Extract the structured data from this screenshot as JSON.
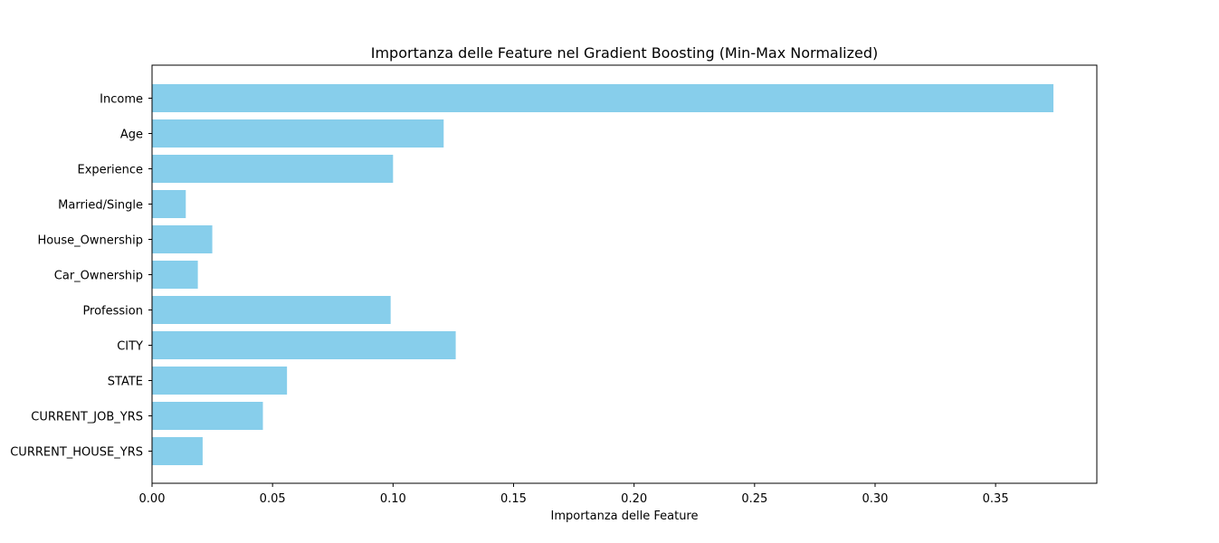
{
  "chart_data": {
    "type": "bar",
    "orientation": "horizontal",
    "title": "Importanza delle Feature nel Gradient Boosting (Min-Max Normalized)",
    "xlabel": "Importanza delle Feature",
    "ylabel": "",
    "categories": [
      "Income",
      "Age",
      "Experience",
      "Married/Single",
      "House_Ownership",
      "Car_Ownership",
      "Profession",
      "CITY",
      "STATE",
      "CURRENT_JOB_YRS",
      "CURRENT_HOUSE_YRS"
    ],
    "values": [
      0.374,
      0.121,
      0.1,
      0.014,
      0.025,
      0.019,
      0.099,
      0.126,
      0.056,
      0.046,
      0.021
    ],
    "xlim": [
      0,
      0.392
    ],
    "xticks": [
      0.0,
      0.05,
      0.1,
      0.15,
      0.2,
      0.25,
      0.3,
      0.35
    ],
    "xtick_labels": [
      "0.00",
      "0.05",
      "0.10",
      "0.15",
      "0.20",
      "0.25",
      "0.30",
      "0.35"
    ],
    "bar_color": "#87ceeb",
    "grid": false
  }
}
